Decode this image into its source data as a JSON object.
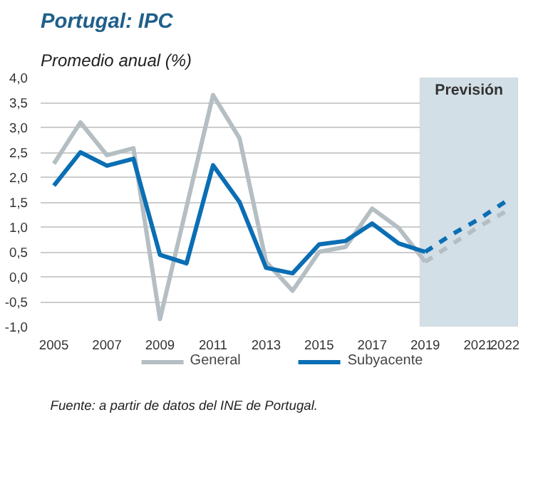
{
  "chart_data": {
    "type": "line",
    "title": "Portugal: IPC",
    "subtitle": "Promedio anual (%)",
    "x": [
      2005,
      2006,
      2007,
      2008,
      2009,
      2010,
      2011,
      2012,
      2013,
      2014,
      2015,
      2016,
      2017,
      2018,
      2019
    ],
    "series": [
      {
        "name": "General",
        "color": "#b4bec3",
        "values": [
          2.27,
          3.1,
          2.44,
          2.58,
          -0.85,
          1.4,
          3.65,
          2.78,
          0.3,
          -0.28,
          0.5,
          0.6,
          1.37,
          0.98,
          0.3
        ]
      },
      {
        "name": "Subyacente",
        "color": "#0a6eb4",
        "values": [
          1.83,
          2.5,
          2.23,
          2.37,
          0.44,
          0.27,
          2.24,
          1.5,
          0.18,
          0.07,
          0.65,
          0.72,
          1.07,
          0.67,
          0.5
        ]
      },
      {
        "color": "#b4bec3",
        "line_style": "dashed",
        "x": [
          2019,
          2020,
          2021,
          2022
        ],
        "values": [
          0.3,
          0.65,
          1.0,
          1.3
        ]
      },
      {
        "color": "#0a6eb4",
        "line_style": "dashed",
        "x": [
          2019,
          2020,
          2021,
          2022
        ],
        "values": [
          0.5,
          0.85,
          1.15,
          1.5
        ]
      }
    ],
    "xlim": [
      2004.5,
      2022.5
    ],
    "xticks": [
      2005,
      2007,
      2009,
      2011,
      2013,
      2015,
      2017,
      2019,
      2021,
      2022
    ],
    "ylim": [
      -1.0,
      4.0
    ],
    "yticks": [
      {
        "value": -1.0,
        "label": "-1,0"
      },
      {
        "value": -0.5,
        "label": "-0,5"
      },
      {
        "value": 0.0,
        "label": "0,0"
      },
      {
        "value": 0.5,
        "label": "0,5"
      },
      {
        "value": 1.0,
        "label": "1,0"
      },
      {
        "value": 1.5,
        "label": "1,5"
      },
      {
        "value": 2.0,
        "label": "2,0"
      },
      {
        "value": 2.5,
        "label": "2,5"
      },
      {
        "value": 3.0,
        "label": "3,0"
      },
      {
        "value": 3.5,
        "label": "3,5"
      },
      {
        "value": 4.0,
        "label": "4,0"
      }
    ],
    "bands": [
      {
        "axis": "x",
        "from": 2018.8,
        "to": 2022.5,
        "label": "Previsión",
        "color": "#d3dfe6"
      }
    ],
    "grid": "y",
    "legend": "bottom",
    "line_style": "solid",
    "annotations": [
      "Fuente: a partir de datos del INE de Portugal."
    ]
  }
}
